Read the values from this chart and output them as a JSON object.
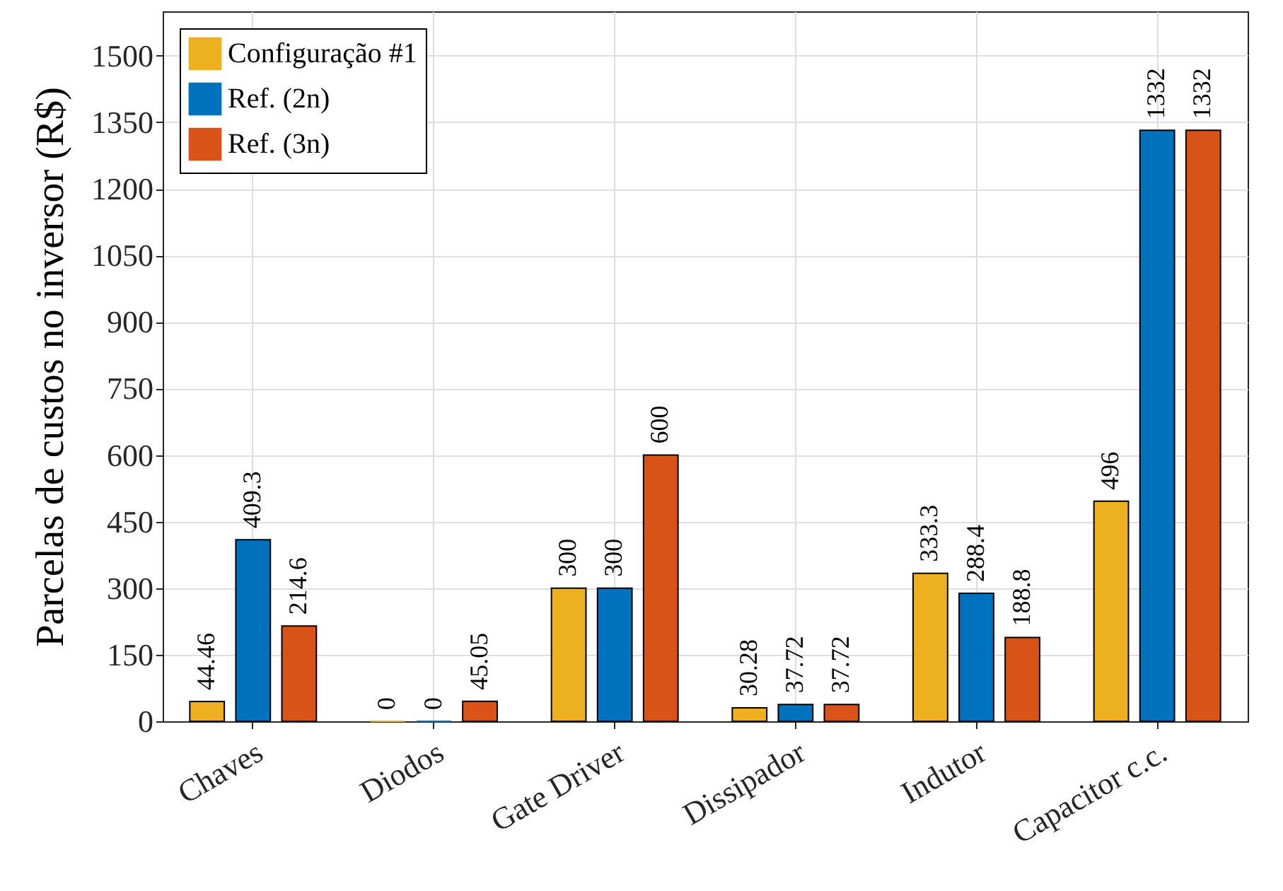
{
  "chart_data": {
    "type": "bar",
    "ylabel": "Parcelas de custos no inversor (R$)",
    "categories": [
      "Chaves",
      "Diodos",
      "Gate Driver",
      "Dissipador",
      "Indutor",
      "Capacitor c.c."
    ],
    "series": [
      {
        "name": "Configuração #1",
        "color": "#edb120",
        "values": [
          44.46,
          0,
          300,
          30.28,
          333.3,
          496
        ]
      },
      {
        "name": "Ref. (2n)",
        "color": "#0072bd",
        "values": [
          409.3,
          0,
          300,
          37.72,
          288.4,
          1332
        ]
      },
      {
        "name": "Ref. (3n)",
        "color": "#d95319",
        "values": [
          214.6,
          45.05,
          600,
          37.72,
          188.8,
          1332
        ]
      }
    ],
    "ylim": [
      0,
      1600
    ],
    "yticks": [
      0,
      150,
      300,
      450,
      600,
      750,
      900,
      1050,
      1200,
      1350,
      1500
    ],
    "grid": true,
    "legend": "top left",
    "data_labels": true
  }
}
